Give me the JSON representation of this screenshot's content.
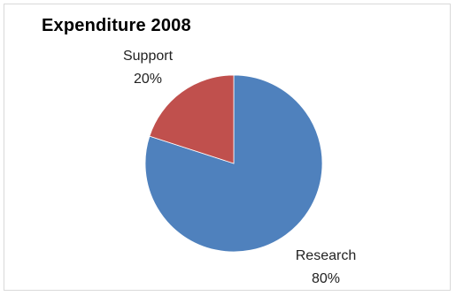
{
  "chart_data": {
    "type": "pie",
    "title": "Expenditure 2008",
    "slices": [
      {
        "name": "Research",
        "percent_label": "80%",
        "value": 80,
        "color": "#4f81bd"
      },
      {
        "name": "Support",
        "percent_label": "20%",
        "value": 20,
        "color": "#c0504d"
      }
    ],
    "legend": "none",
    "start_angle": "top, clockwise"
  }
}
